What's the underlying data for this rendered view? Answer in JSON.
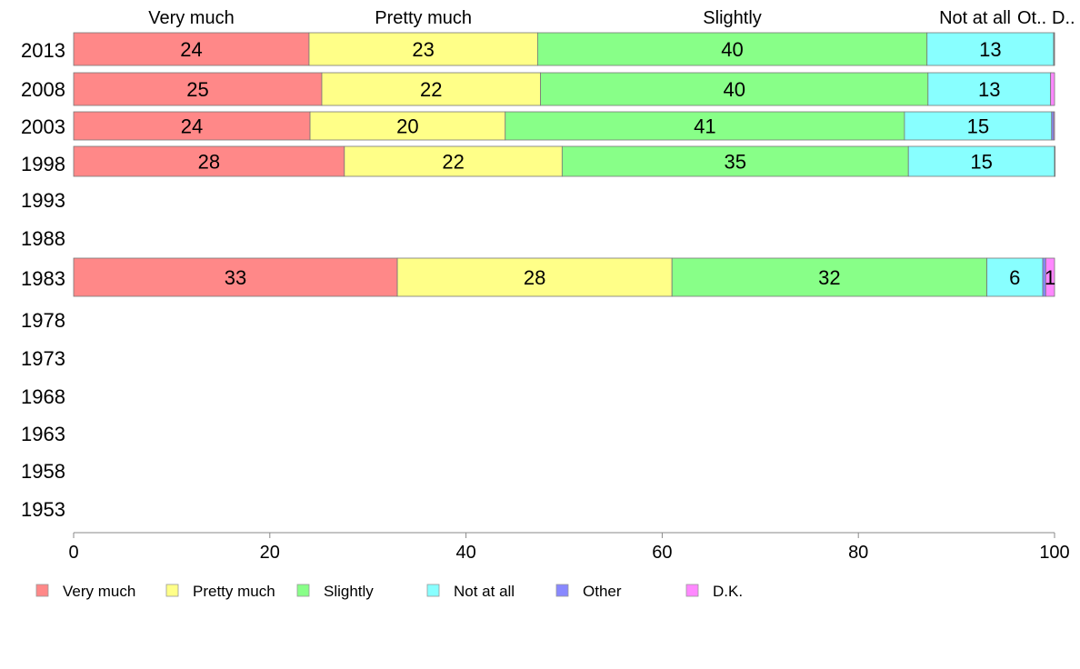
{
  "chart_data": {
    "type": "bar",
    "orientation": "horizontal-stacked-percent",
    "categories": [
      "2013",
      "2008",
      "2003",
      "1998",
      "1993",
      "1988",
      "1983",
      "1978",
      "1973",
      "1968",
      "1963",
      "1958",
      "1953"
    ],
    "series": [
      {
        "name": "Very much",
        "color": "#ff8888",
        "values": [
          24.0,
          25.3,
          24.1,
          27.6,
          null,
          null,
          33.0,
          null,
          null,
          null,
          null,
          null,
          null
        ]
      },
      {
        "name": "Pretty much",
        "color": "#ffff88",
        "values": [
          23.3,
          22.3,
          19.9,
          22.2,
          null,
          null,
          28.0,
          null,
          null,
          null,
          null,
          null,
          null
        ]
      },
      {
        "name": "Slightly",
        "color": "#88ff88",
        "values": [
          39.7,
          39.5,
          40.7,
          35.3,
          null,
          null,
          32.1,
          null,
          null,
          null,
          null,
          null,
          null
        ]
      },
      {
        "name": "Not at all",
        "color": "#88ffff",
        "values": [
          12.9,
          12.5,
          15.0,
          14.9,
          null,
          null,
          5.7,
          null,
          null,
          null,
          null,
          null,
          null
        ]
      },
      {
        "name": "Other",
        "color": "#8888ff",
        "values": [
          0.05,
          0.0,
          0.2,
          0.0,
          null,
          null,
          0.3,
          null,
          null,
          null,
          null,
          null,
          null
        ]
      },
      {
        "name": "D.K.",
        "color": "#ff88ff",
        "values": [
          0.05,
          0.4,
          0.1,
          0.0,
          null,
          null,
          0.9,
          null,
          null,
          null,
          null,
          null,
          null
        ]
      }
    ],
    "top_labels": [
      "Very much",
      "Pretty much",
      "Slightly",
      "Not at all",
      "Ot..",
      "D.."
    ],
    "xlim": [
      0,
      100
    ],
    "xticks": [
      "0",
      "20",
      "40",
      "60",
      "80",
      "100"
    ],
    "legend": "bottom",
    "grid": false,
    "title": "",
    "xlabel": "",
    "ylabel": ""
  }
}
